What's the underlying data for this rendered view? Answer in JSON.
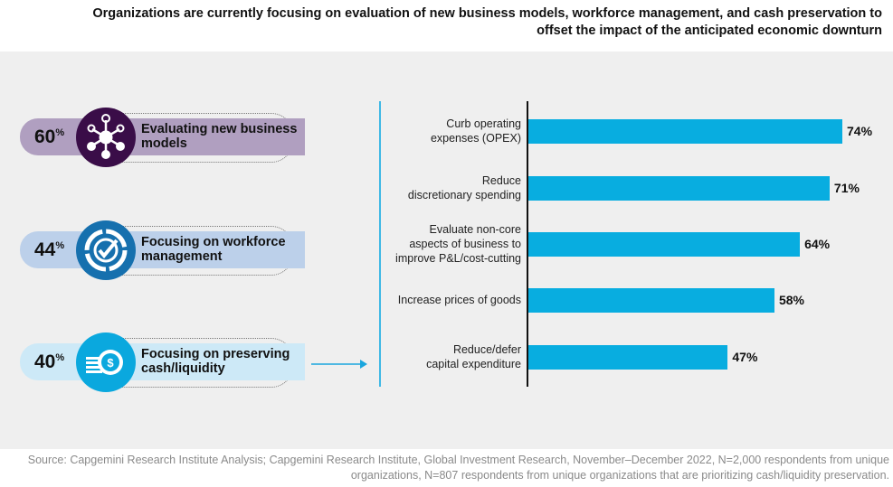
{
  "title": "Organizations are currently focusing on evaluation of new business models, workforce management, and cash preservation to offset the impact of the anticipated economic downturn",
  "focus_areas": [
    {
      "pct": "60",
      "unit": "%",
      "label": "Evaluating new business models",
      "icon": "network-hub-icon",
      "pill_color": "#b09fc0",
      "circle_color": "#3a0d48"
    },
    {
      "pct": "44",
      "unit": "%",
      "label": "Focusing on workforce management",
      "icon": "target-check-icon",
      "pill_color": "#bcd0ea",
      "circle_color": "#1670ae"
    },
    {
      "pct": "40",
      "unit": "%",
      "label": "Focusing on preserving cash/liquidity",
      "icon": "coins-dollar-icon",
      "pill_color": "#cde9f7",
      "circle_color": "#0aa8de"
    }
  ],
  "chart_data": {
    "type": "bar",
    "orientation": "horizontal",
    "categories": [
      "Curb operating expenses (OPEX)",
      "Reduce discretionary spending",
      "Evaluate non-core aspects of business to improve P&L/cost-cutting",
      "Increase prices of goods",
      "Reduce/defer capital expenditure"
    ],
    "category_lines": [
      [
        "Curb operating",
        "expenses (OPEX)"
      ],
      [
        "Reduce",
        "discretionary spending"
      ],
      [
        "Evaluate non-core",
        "aspects of business to",
        "improve P&L/cost-cutting"
      ],
      [
        "Increase prices of goods"
      ],
      [
        "Reduce/defer",
        "capital expenditure"
      ]
    ],
    "values": [
      74,
      71,
      64,
      58,
      47
    ],
    "data_labels": [
      "74%",
      "71%",
      "64%",
      "58%",
      "47%"
    ],
    "bar_color": "#08ade0",
    "grid": false
  },
  "source": "Source: Capgemini Research Institute Analysis; Capgemini Research Institute, Global Investment Research, November–December 2022, N=2,000 respondents from unique organizations, N=807 respondents from unique organizations that are prioritizing cash/liquidity preservation."
}
